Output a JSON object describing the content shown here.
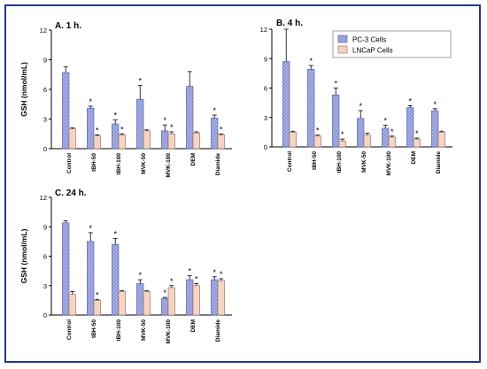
{
  "colors": {
    "frame": "#1f3a8a",
    "pc3_fill": "#8f98d6",
    "pc3_stroke": "#4a55a8",
    "lncap_fill": "#f6d4c4",
    "lncap_stroke": "#8a6a5a",
    "axis": "#000000"
  },
  "chart_data": [
    {
      "type": "bar",
      "title": "A. 1 h.",
      "ylabel": "GSH (nmol/mL)",
      "ylim": [
        0,
        12
      ],
      "yticks": [
        0,
        3,
        6,
        9,
        12
      ],
      "categories": [
        "Control",
        "tBH-50",
        "tBH-100",
        "MVK-50",
        "MVK-100",
        "DEM",
        "Diamide"
      ],
      "series": [
        {
          "name": "PC-3 Cells",
          "values": [
            7.7,
            4.1,
            2.5,
            5.0,
            1.8,
            6.3,
            3.1
          ],
          "errors": [
            0.6,
            0.2,
            0.4,
            1.4,
            0.6,
            1.5,
            0.3
          ],
          "significant": [
            false,
            true,
            true,
            true,
            true,
            false,
            true
          ]
        },
        {
          "name": "LNCaP Cells",
          "values": [
            2.0,
            1.3,
            1.4,
            1.8,
            1.5,
            1.6,
            1.4
          ],
          "errors": [
            0.1,
            0.1,
            0.1,
            0.1,
            0.2,
            0.1,
            0.1
          ],
          "significant": [
            false,
            true,
            true,
            false,
            true,
            false,
            true
          ]
        }
      ]
    },
    {
      "type": "bar",
      "title": "B. 4 h.",
      "ylabel": "",
      "ylim": [
        0,
        12
      ],
      "yticks": [
        0,
        3,
        6,
        9,
        12
      ],
      "categories": [
        "Control",
        "tBH-50",
        "tBH-100",
        "MVK-50",
        "MVK-100",
        "DEM",
        "Diamide"
      ],
      "legend_position": "top-right",
      "series": [
        {
          "name": "PC-3 Cells",
          "values": [
            8.7,
            7.9,
            5.3,
            2.9,
            1.9,
            4.0,
            3.7
          ],
          "errors": [
            3.3,
            0.4,
            0.7,
            0.8,
            0.3,
            0.2,
            0.2
          ],
          "significant": [
            false,
            true,
            true,
            true,
            true,
            true,
            true
          ]
        },
        {
          "name": "LNCaP Cells",
          "values": [
            1.5,
            1.1,
            0.6,
            1.2,
            1.0,
            0.8,
            1.5
          ],
          "errors": [
            0.1,
            0.1,
            0.2,
            0.2,
            0.1,
            0.1,
            0.1
          ],
          "significant": [
            false,
            true,
            true,
            false,
            true,
            true,
            false
          ]
        }
      ]
    },
    {
      "type": "bar",
      "title": "C. 24 h.",
      "ylabel": "GSH (nmol/mL)",
      "ylim": [
        0,
        12
      ],
      "yticks": [
        0,
        3,
        6,
        9,
        12
      ],
      "categories": [
        "Control",
        "tBH-50",
        "tBH-100",
        "MVK-50",
        "MVK-100",
        "DEM",
        "Diamide"
      ],
      "series": [
        {
          "name": "PC-3 Cells",
          "values": [
            9.4,
            7.5,
            7.2,
            3.2,
            1.7,
            3.6,
            3.6
          ],
          "errors": [
            0.2,
            0.9,
            0.6,
            0.4,
            0.1,
            0.4,
            0.3
          ],
          "significant": [
            false,
            true,
            true,
            true,
            true,
            true,
            true
          ]
        },
        {
          "name": "LNCaP Cells",
          "values": [
            2.1,
            1.5,
            2.4,
            2.4,
            2.8,
            3.0,
            3.5
          ],
          "errors": [
            0.3,
            0.1,
            0.1,
            0.1,
            0.2,
            0.2,
            0.2
          ],
          "significant": [
            false,
            true,
            false,
            false,
            true,
            true,
            true
          ]
        }
      ]
    }
  ]
}
